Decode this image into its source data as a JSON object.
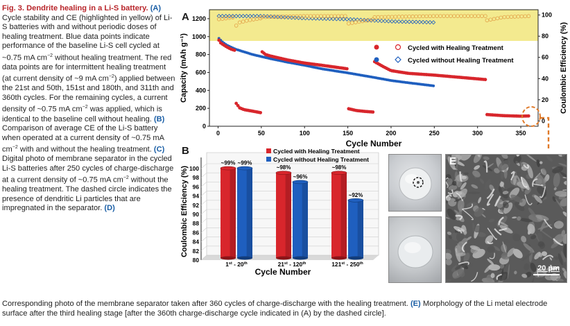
{
  "caption": {
    "title": "Fig. 3. Dendrite healing in a Li-S battery.",
    "seg_a_label": "(A)",
    "seg_a_1": "Cycle stability and CE (highlighted in yellow) of Li-S batteries with and without periodic doses of healing treatment. Blue data points indicate performance of the baseline Li-S cell cycled at ~0.75 mA cm",
    "sup_a": "−2",
    "seg_a_2": "without healing treatment. The red data points are for intermittent healing treatment (at current density of ~9 mA cm",
    "sup_b": "−2",
    "seg_a_3": ") applied between the 21st and 50th, 151st and 180th, and 311th and 360th cycles. For the remaining cycles, a current density of ~0.75 mA cm",
    "sup_c": "−2",
    "seg_a_4": "was applied, which is identical to the baseline cell without healing.",
    "seg_b_label": "(B)",
    "seg_b_1": "Comparison of average CE of the Li-S battery when operated at a current density of ~0.75 mA cm",
    "sup_d": "−2",
    "seg_b_2": "with and without the healing treatment.",
    "seg_c_label": "(C)",
    "seg_c_1": "Digital photo of membrane separator in the cycled Li-S batteries after 250 cycles of charge-discharge at a current density of ~0.75 mA cm",
    "sup_e": "−2",
    "seg_c_2": "without the healing treatment. The dashed circle indicates the presence of dendritic Li particles that are impregnated in the separator.",
    "seg_d_label": "(D)",
    "seg_d_1": "Corresponding photo of the membrane separator taken after 360 cycles of charge-discharge with the healing treatment.",
    "seg_e_label": "(E)",
    "seg_e_1": "Morphology of the Li metal electrode surface after the third healing stage [after the 360th charge-discharge cycle indicated in (A) by the dashed circle]."
  },
  "panels": {
    "a": "A",
    "b": "B",
    "c": "C",
    "d": "D",
    "e": "E"
  },
  "scale_bar": "20 μm",
  "colors": {
    "red": "#d8262c",
    "blue": "#1f5fbf",
    "highlight": "#f3ea8f",
    "orange": "#e07a2a"
  },
  "chart_data": [
    {
      "type": "scatter",
      "panel": "A",
      "xlabel": "Cycle Number",
      "ylabel": "Capacity (mAh g⁻¹)",
      "y2label": "Coulombic Efficiency (%)",
      "xlim": [
        -10,
        370
      ],
      "ylim": [
        0,
        1300
      ],
      "y2lim": [
        -5,
        105
      ],
      "xticks": [
        "0",
        "50",
        "100",
        "150",
        "200",
        "250",
        "300",
        "350"
      ],
      "yticks": [
        "0",
        "200",
        "400",
        "600",
        "800",
        "1000",
        "1200"
      ],
      "y2ticks": [
        "0",
        "20",
        "40",
        "60",
        "80",
        "100"
      ],
      "legend": [
        {
          "label": "Cycled with Healing Treatment"
        },
        {
          "label": "Cycled without Healing Treatment"
        }
      ],
      "series": [
        {
          "name": "Cycled with Healing Treatment",
          "capacity": [
            [
              1,
              960
            ],
            [
              3,
              930
            ],
            [
              6,
              910
            ],
            [
              10,
              885
            ],
            [
              15,
              860
            ],
            [
              20,
              845
            ],
            [
              21,
              255
            ],
            [
              25,
              205
            ],
            [
              30,
              185
            ],
            [
              40,
              168
            ],
            [
              50,
              150
            ],
            [
              51,
              830
            ],
            [
              55,
              800
            ],
            [
              60,
              785
            ],
            [
              80,
              740
            ],
            [
              100,
              705
            ],
            [
              120,
              680
            ],
            [
              150,
              640
            ],
            [
              151,
              195
            ],
            [
              160,
              175
            ],
            [
              170,
              165
            ],
            [
              180,
              158
            ],
            [
              181,
              720
            ],
            [
              190,
              670
            ],
            [
              200,
              620
            ],
            [
              220,
              590
            ],
            [
              250,
              570
            ],
            [
              280,
              545
            ],
            [
              310,
              520
            ],
            [
              311,
              130
            ],
            [
              330,
              118
            ],
            [
              350,
              112
            ],
            [
              360,
              115
            ]
          ],
          "ce": [
            [
              1,
              96
            ],
            [
              20,
              98
            ],
            [
              21,
              90
            ],
            [
              25,
              93
            ],
            [
              35,
              95
            ],
            [
              50,
              97
            ],
            [
              51,
              98
            ],
            [
              100,
              99
            ],
            [
              150,
              99
            ],
            [
              151,
              92
            ],
            [
              180,
              96
            ],
            [
              181,
              98
            ],
            [
              250,
              99
            ],
            [
              310,
              99
            ],
            [
              311,
              95
            ],
            [
              330,
              98
            ],
            [
              360,
              99
            ]
          ]
        },
        {
          "name": "Cycled without Healing Treatment",
          "capacity": [
            [
              1,
              980
            ],
            [
              5,
              940
            ],
            [
              10,
              905
            ],
            [
              20,
              860
            ],
            [
              40,
              800
            ],
            [
              60,
              755
            ],
            [
              80,
              715
            ],
            [
              100,
              680
            ],
            [
              120,
              640
            ],
            [
              150,
              595
            ],
            [
              180,
              545
            ],
            [
              200,
              510
            ],
            [
              220,
              485
            ],
            [
              250,
              450
            ]
          ],
          "ce": [
            [
              1,
              99
            ],
            [
              20,
              99
            ],
            [
              50,
              99
            ],
            [
              100,
              97
            ],
            [
              150,
              96
            ],
            [
              200,
              94
            ],
            [
              250,
              93
            ]
          ]
        }
      ]
    },
    {
      "type": "bar",
      "panel": "B",
      "xlabel": "Cycle Number",
      "ylabel": "Coulombic Efficiency (%)",
      "ylim": [
        80,
        100
      ],
      "yticks": [
        "80",
        "82",
        "84",
        "86",
        "88",
        "90",
        "92",
        "94",
        "96",
        "98",
        "100"
      ],
      "categories": [
        {
          "base": "1",
          "sup1": "st",
          "mid": " - 20",
          "sup2": "th"
        },
        {
          "base": "21",
          "sup1": "st",
          "mid": " - 120",
          "sup2": "th"
        },
        {
          "base": "121",
          "sup1": "st",
          "mid": " - 250",
          "sup2": "th"
        }
      ],
      "legend": [
        {
          "label": "Cycled with Healing Treatment"
        },
        {
          "label": "Cycled without Healing Treatment"
        }
      ],
      "series": [
        {
          "name": "Cycled with Healing Treatment",
          "values": [
            99,
            98,
            98
          ],
          "labels": [
            "~99%",
            "~98%",
            "~98%"
          ]
        },
        {
          "name": "Cycled without Healing Treatment",
          "values": [
            99,
            96,
            92
          ],
          "labels": [
            "~99%",
            "~96%",
            "~92%"
          ]
        }
      ]
    }
  ]
}
